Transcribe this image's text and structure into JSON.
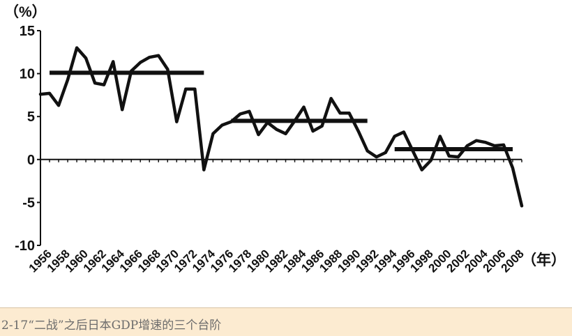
{
  "caption": "2-17“二战”之后日本GDP增速的三个台阶",
  "chart_data": {
    "type": "line",
    "y_unit_label": "（%）",
    "x_unit_label": "（年）",
    "ylim": [
      -10,
      15
    ],
    "yticks": [
      15,
      10,
      5,
      0,
      -5,
      -10
    ],
    "ytick_labels": [
      "15",
      "10",
      "5",
      "0",
      "-5",
      "-10"
    ],
    "xlim": [
      1956,
      2008
    ],
    "xtick_labels": [
      "1956",
      "1958",
      "1960",
      "1962",
      "1964",
      "1966",
      "1968",
      "1970",
      "1972",
      "1974",
      "1976",
      "1978",
      "1980",
      "1982",
      "1984",
      "1986",
      "1988",
      "1990",
      "1992",
      "1994",
      "1996",
      "1998",
      "2000",
      "2002",
      "2004",
      "2006",
      "2008"
    ],
    "x": [
      1955,
      1956,
      1957,
      1958,
      1959,
      1960,
      1961,
      1962,
      1963,
      1964,
      1965,
      1966,
      1967,
      1968,
      1969,
      1970,
      1971,
      1972,
      1973,
      1974,
      1975,
      1976,
      1977,
      1978,
      1979,
      1980,
      1981,
      1982,
      1983,
      1984,
      1985,
      1986,
      1987,
      1988,
      1989,
      1990,
      1991,
      1992,
      1993,
      1994,
      1995,
      1996,
      1997,
      1998,
      1999,
      2000,
      2001,
      2002,
      2003,
      2004,
      2005,
      2006,
      2007,
      2008
    ],
    "values": [
      7.6,
      7.7,
      6.3,
      9.3,
      13.0,
      11.8,
      8.9,
      8.7,
      11.4,
      5.8,
      10.3,
      11.3,
      11.9,
      12.1,
      10.5,
      4.4,
      8.2,
      8.2,
      -1.2,
      3.0,
      4.0,
      4.4,
      5.3,
      5.6,
      2.9,
      4.3,
      3.5,
      3.0,
      4.5,
      6.1,
      3.3,
      3.9,
      7.1,
      5.4,
      5.4,
      3.3,
      1.0,
      0.3,
      0.8,
      2.7,
      3.2,
      1.0,
      -1.2,
      -0.1,
      2.7,
      0.4,
      0.3,
      1.6,
      2.2,
      2.0,
      1.6,
      1.7,
      -1.0,
      -5.4
    ],
    "plateaus": [
      {
        "from": 1956,
        "to": 1973,
        "value": 10.1
      },
      {
        "from": 1976,
        "to": 1991,
        "value": 4.5
      },
      {
        "from": 1994,
        "to": 2007,
        "value": 1.2
      }
    ],
    "grid": false
  }
}
